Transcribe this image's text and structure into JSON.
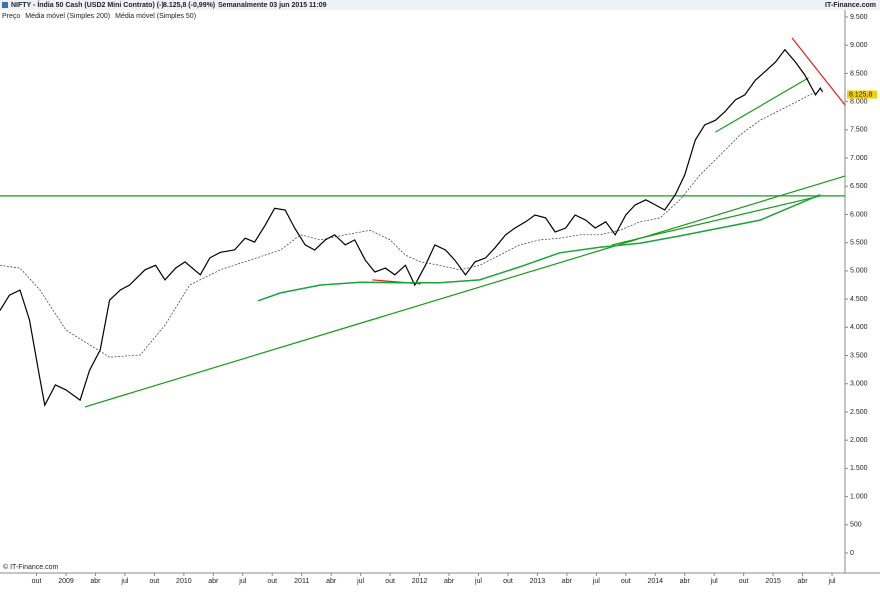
{
  "header": {
    "symbol": "NIFTY - Índia 50 Cash (USD2 Mini Contrato) (-)",
    "quote": "8.125,8 (-0,99%)",
    "period": "Semanalmente  03 jun 2015 11:09",
    "brand": "IT-Finance.com"
  },
  "footer": "© IT-Finance.com",
  "chart_data": {
    "type": "line",
    "xlim": [
      2008.44,
      2015.61
    ],
    "ylim": [
      0,
      9500
    ],
    "xticks": [
      {
        "value": 2008.75,
        "label": "out"
      },
      {
        "value": 2009,
        "label": "2009"
      },
      {
        "value": 2009.25,
        "label": "abr"
      },
      {
        "value": 2009.5,
        "label": "jul"
      },
      {
        "value": 2009.75,
        "label": "out"
      },
      {
        "value": 2010,
        "label": "2010"
      },
      {
        "value": 2010.25,
        "label": "abr"
      },
      {
        "value": 2010.5,
        "label": "jul"
      },
      {
        "value": 2010.75,
        "label": "out"
      },
      {
        "value": 2011,
        "label": "2011"
      },
      {
        "value": 2011.25,
        "label": "abr"
      },
      {
        "value": 2011.5,
        "label": "jul"
      },
      {
        "value": 2011.75,
        "label": "out"
      },
      {
        "value": 2012,
        "label": "2012"
      },
      {
        "value": 2012.25,
        "label": "abr"
      },
      {
        "value": 2012.5,
        "label": "jul"
      },
      {
        "value": 2012.75,
        "label": "out"
      },
      {
        "value": 2013,
        "label": "2013"
      },
      {
        "value": 2013.25,
        "label": "abr"
      },
      {
        "value": 2013.5,
        "label": "jul"
      },
      {
        "value": 2013.75,
        "label": "out"
      },
      {
        "value": 2014,
        "label": "2014"
      },
      {
        "value": 2014.25,
        "label": "abr"
      },
      {
        "value": 2014.5,
        "label": "jul"
      },
      {
        "value": 2014.75,
        "label": "out"
      },
      {
        "value": 2015,
        "label": "2015"
      },
      {
        "value": 2015.25,
        "label": "abr"
      },
      {
        "value": 2015.5,
        "label": "jul"
      }
    ],
    "yticks": [
      0,
      500,
      {
        "value": 1000,
        "label": "1.000"
      },
      {
        "value": 1500,
        "label": "1.500"
      },
      {
        "value": 2000,
        "label": "2.000"
      },
      {
        "value": 2500,
        "label": "2.500"
      },
      {
        "value": 3000,
        "label": "3.000"
      },
      {
        "value": 3500,
        "label": "3.500"
      },
      {
        "value": 4000,
        "label": "4.000"
      },
      {
        "value": 4500,
        "label": "4.500"
      },
      {
        "value": 5000,
        "label": "5.000"
      },
      {
        "value": 5500,
        "label": "5.500"
      },
      {
        "value": 6000,
        "label": "6.000"
      },
      {
        "value": 6500,
        "label": "6.500"
      },
      {
        "value": 7000,
        "label": "7.000"
      },
      {
        "value": 7500,
        "label": "7.500"
      },
      {
        "value": 8000,
        "label": "8.000"
      },
      {
        "value": 8500,
        "label": "8.500"
      },
      {
        "value": 9000,
        "label": "9.000"
      },
      {
        "value": 9500,
        "label": "9.500"
      }
    ],
    "series": [
      {
        "name": "Preço",
        "color": "#000000",
        "dashed": false,
        "x": [
          2008.44,
          2008.52,
          2008.61,
          2008.69,
          2008.78,
          2008.82,
          2008.91,
          2009.0,
          2009.12,
          2009.2,
          2009.29,
          2009.37,
          2009.46,
          2009.54,
          2009.67,
          2009.76,
          2009.84,
          2009.93,
          2010.01,
          2010.14,
          2010.22,
          2010.31,
          2010.43,
          2010.52,
          2010.6,
          2010.69,
          2010.77,
          2010.86,
          2010.94,
          2011.03,
          2011.11,
          2011.2,
          2011.28,
          2011.37,
          2011.45,
          2011.54,
          2011.62,
          2011.71,
          2011.79,
          2011.88,
          2011.96,
          2012.05,
          2012.13,
          2012.22,
          2012.3,
          2012.39,
          2012.47,
          2012.56,
          2012.64,
          2012.73,
          2012.81,
          2012.9,
          2012.98,
          2013.07,
          2013.15,
          2013.24,
          2013.32,
          2013.41,
          2013.49,
          2013.58,
          2013.66,
          2013.75,
          2013.83,
          2013.92,
          2014.0,
          2014.08,
          2014.17,
          2014.25,
          2014.34,
          2014.42,
          2014.51,
          2014.59,
          2014.68,
          2014.76,
          2014.85,
          2014.93,
          2015.02,
          2015.1,
          2015.19,
          2015.27,
          2015.36,
          2015.4,
          2015.42
        ],
        "values": [
          4300,
          4570,
          4660,
          4130,
          3070,
          2620,
          2980,
          2890,
          2710,
          3240,
          3600,
          4480,
          4660,
          4750,
          5020,
          5100,
          4840,
          5050,
          5160,
          4930,
          5230,
          5330,
          5370,
          5580,
          5510,
          5810,
          6110,
          6080,
          5760,
          5460,
          5370,
          5550,
          5640,
          5460,
          5550,
          5190,
          4980,
          5050,
          4930,
          5100,
          4750,
          5100,
          5460,
          5370,
          5190,
          4930,
          5160,
          5230,
          5410,
          5640,
          5760,
          5870,
          5990,
          5940,
          5690,
          5760,
          5990,
          5900,
          5760,
          5870,
          5640,
          5990,
          6170,
          6260,
          6170,
          6080,
          6350,
          6700,
          7320,
          7590,
          7670,
          7820,
          8030,
          8120,
          8380,
          8530,
          8700,
          8920,
          8700,
          8470,
          8120,
          8240,
          8170
        ]
      },
      {
        "name": "Média móvel (Simples 200)",
        "color": "#1aa33a",
        "dashed": false,
        "x": [
          2010.63,
          2010.82,
          2011.16,
          2011.5,
          2011.84,
          2012.17,
          2012.51,
          2012.85,
          2013.19,
          2013.53,
          2013.87,
          2014.21,
          2014.55,
          2014.89,
          2015.23,
          2015.4
        ],
        "values": [
          4470,
          4610,
          4750,
          4800,
          4790,
          4790,
          4840,
          5070,
          5320,
          5420,
          5490,
          5620,
          5760,
          5900,
          6200,
          6350
        ]
      },
      {
        "name": "Média móvel (Simples 50)",
        "color": "#333333",
        "dashed": true,
        "x": [
          2008.44,
          2008.61,
          2008.78,
          2009.0,
          2009.2,
          2009.37,
          2009.63,
          2009.84,
          2010.05,
          2010.31,
          2010.56,
          2010.82,
          2010.99,
          2011.16,
          2011.37,
          2011.58,
          2011.75,
          2011.88,
          2012.01,
          2012.17,
          2012.34,
          2012.51,
          2012.68,
          2012.85,
          2013.02,
          2013.19,
          2013.36,
          2013.53,
          2013.7,
          2013.87,
          2014.04,
          2014.21,
          2014.38,
          2014.55,
          2014.72,
          2014.89,
          2015.06,
          2015.23,
          2015.36
        ],
        "values": [
          5100,
          5050,
          4660,
          3950,
          3690,
          3470,
          3510,
          4040,
          4750,
          5020,
          5190,
          5370,
          5640,
          5550,
          5640,
          5720,
          5550,
          5280,
          5160,
          5100,
          5020,
          5100,
          5280,
          5460,
          5550,
          5580,
          5640,
          5640,
          5720,
          5870,
          5940,
          6260,
          6700,
          7050,
          7410,
          7670,
          7850,
          8030,
          8170
        ]
      }
    ],
    "trendlines": [
      {
        "color": "#1a9a1a",
        "x": [
          2008.44,
          2015.61
        ],
        "values": [
          6330,
          6330
        ]
      },
      {
        "color": "#1a9a1a",
        "x": [
          2009.16,
          2015.61
        ],
        "values": [
          2590,
          6680
        ]
      },
      {
        "color": "#1a9a1a",
        "x": [
          2013.63,
          2015.4
        ],
        "values": [
          5460,
          6330
        ]
      },
      {
        "color": "#1a9a1a",
        "x": [
          2014.51,
          2015.3
        ],
        "values": [
          7460,
          8420
        ]
      },
      {
        "color": "#e02020",
        "x": [
          2015.16,
          2015.61
        ],
        "values": [
          9130,
          7940
        ]
      },
      {
        "color": "#e02020",
        "x": [
          2011.6,
          2012.01
        ],
        "values": [
          4840,
          4770
        ]
      }
    ],
    "last_price": {
      "value": 8125.8,
      "label": "8.125,8",
      "color": "#f5d000"
    }
  }
}
